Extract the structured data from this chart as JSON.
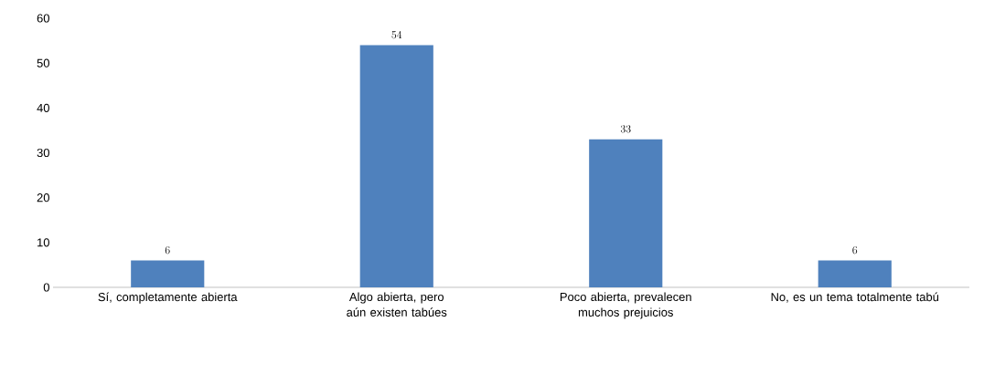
{
  "chart_data": {
    "type": "bar",
    "categories": [
      "Sí, completamente abierta",
      "Algo abierta, pero aún existen tabúes",
      "Poco abierta, prevalecen muchos prejuicios",
      "No, es un tema totalmente tabú"
    ],
    "values": [
      6,
      54,
      33,
      6
    ],
    "color": "#4f81bd",
    "ylim": [
      0,
      60
    ],
    "yticks": [
      0,
      10,
      20,
      30,
      40,
      50,
      60
    ],
    "data_labels": true
  }
}
